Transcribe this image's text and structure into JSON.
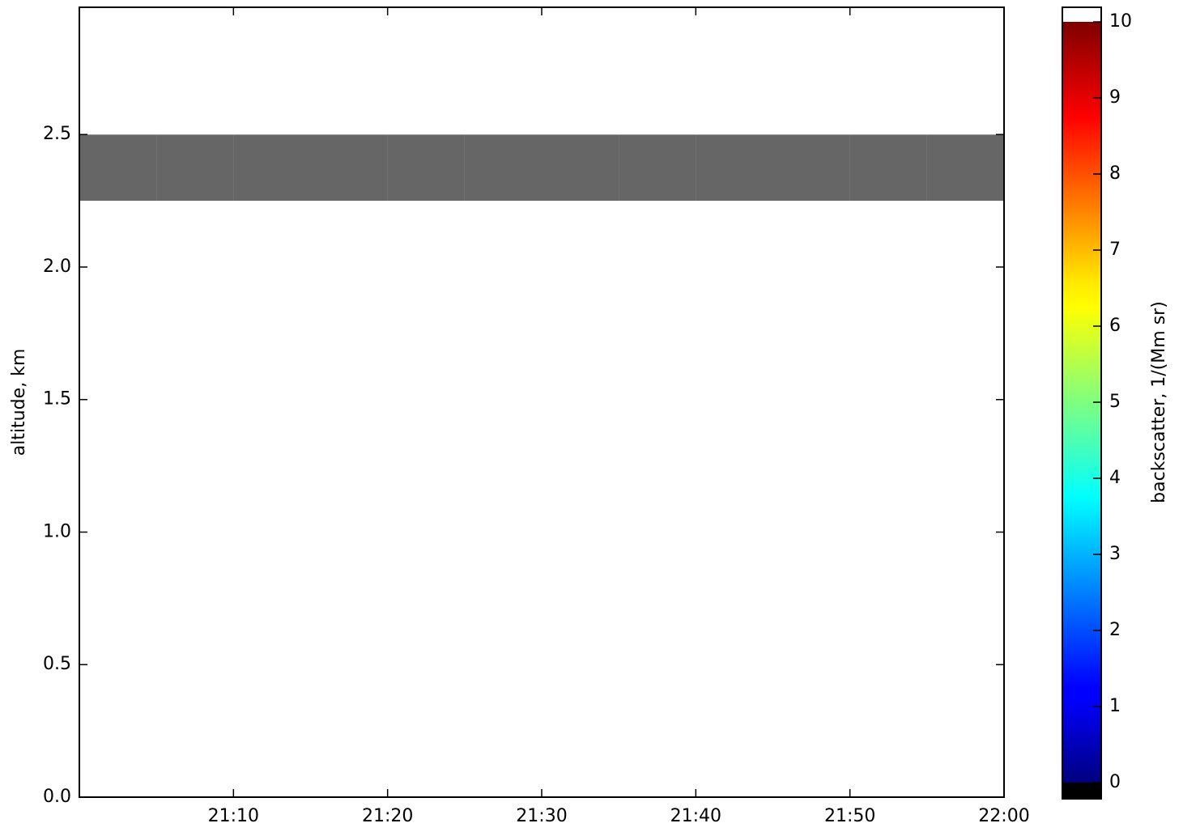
{
  "chart_data": {
    "type": "heatmap",
    "ylabel": "altitude, km",
    "colorbar_label": "backscatter, 1/(Mm sr)",
    "xbins": [
      0,
      5,
      10,
      15,
      20,
      25,
      30,
      35,
      40,
      45,
      50,
      55,
      60
    ],
    "ybins": [
      0,
      0.25,
      0.5,
      0.75,
      1.0,
      1.25,
      1.5,
      1.75,
      2.0,
      2.25,
      2.5,
      2.75,
      2.98
    ],
    "values": [
      [
        12,
        12,
        12,
        12,
        12,
        12,
        12,
        12,
        12,
        12,
        12,
        12
      ],
      [
        12,
        12,
        12,
        12,
        12,
        12,
        12,
        12,
        12,
        12,
        12,
        12
      ],
      [
        12,
        12,
        12,
        12,
        12,
        12,
        12,
        12,
        12,
        12,
        12,
        12
      ],
      [
        12,
        12,
        12,
        12,
        12,
        12,
        12,
        12,
        12,
        12,
        12,
        12
      ],
      [
        12,
        12,
        12,
        12,
        12,
        12,
        12,
        12,
        12,
        12,
        12,
        12
      ],
      [
        12,
        12,
        12,
        12,
        12,
        12,
        12,
        12,
        12,
        12,
        12,
        12
      ],
      [
        12,
        12,
        12,
        12,
        12,
        12,
        12,
        12,
        12,
        12,
        12,
        12
      ],
      [
        12,
        12,
        12,
        12,
        12,
        12,
        12,
        12,
        12,
        12,
        12,
        12
      ],
      [
        11,
        11,
        11,
        11,
        11,
        11,
        11,
        11,
        11,
        11,
        11,
        11
      ],
      [
        -1,
        -1,
        -1,
        -1,
        -1,
        -1,
        -1,
        -1,
        -1,
        -1,
        -1,
        -1
      ],
      [
        11,
        11,
        11,
        11,
        11,
        11,
        11,
        11,
        11,
        11,
        11,
        11
      ],
      [
        11,
        11,
        11,
        11,
        11,
        11,
        11,
        11,
        11,
        11,
        11,
        11
      ]
    ],
    "xlim": [
      0,
      60
    ],
    "xticks": [
      {
        "value": 10,
        "label": "21:10"
      },
      {
        "value": 20,
        "label": "21:20"
      },
      {
        "value": 30,
        "label": "21:30"
      },
      {
        "value": 40,
        "label": "21:40"
      },
      {
        "value": 50,
        "label": "21:50"
      },
      {
        "value": 60,
        "label": "22:00"
      }
    ],
    "ylim": [
      0,
      2.98
    ],
    "yticks": [
      {
        "value": 0,
        "label": "0.0"
      },
      0.5,
      {
        "value": 1,
        "label": "1.0"
      },
      1.5,
      {
        "value": 2,
        "label": "2.0"
      },
      2.5
    ],
    "clim": [
      0,
      10
    ],
    "cticks": [
      0,
      1,
      2,
      3,
      4,
      5,
      6,
      7,
      8,
      9,
      10
    ],
    "under_color": "#000000",
    "over_color": "#ffffff"
  }
}
